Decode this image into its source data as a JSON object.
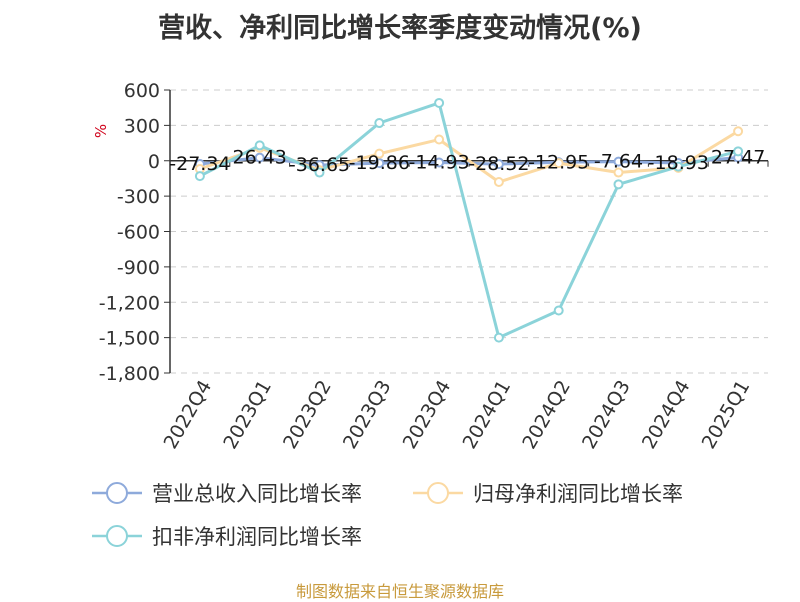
{
  "chart_data": {
    "type": "line",
    "title": "营收、净利同比增长率季度变动情况(%)",
    "unit_label": "%",
    "categories": [
      "2022Q4",
      "2023Q1",
      "2023Q2",
      "2023Q3",
      "2023Q4",
      "2024Q1",
      "2024Q2",
      "2024Q3",
      "2024Q4",
      "2025Q1"
    ],
    "ylim": [
      -1800,
      600
    ],
    "yticks": [
      600,
      300,
      0,
      -300,
      -600,
      -900,
      -1200,
      -1500,
      -1800
    ],
    "ytick_labels": [
      "600",
      "300",
      "0",
      "-300",
      "-600",
      "-900",
      "-1,200",
      "-1,500",
      "-1,800"
    ],
    "grid": true,
    "legend_position": "bottom",
    "series": [
      {
        "name": "营业总收入同比增长率",
        "color": "#8eaadb",
        "values": [
          -27.34,
          26.43,
          -36.65,
          -19.86,
          -14.93,
          -28.52,
          -12.95,
          -7.64,
          -18.93,
          27.47
        ],
        "labels": [
          "-27.34",
          "26.43",
          "-36.65",
          "-19.86",
          "-14.93",
          "-28.52",
          "-12.95",
          "-7.64",
          "-18.93",
          "27.47"
        ]
      },
      {
        "name": "归母净利润同比增长率",
        "color": "#fbd9a2",
        "values": [
          -70,
          110,
          -80,
          60,
          180,
          -180,
          -20,
          -100,
          -60,
          250
        ]
      },
      {
        "name": "扣非净利润同比增长率",
        "color": "#8bd3d9",
        "values": [
          -130,
          130,
          -100,
          320,
          490,
          -1500,
          -1270,
          -200,
          -50,
          80
        ]
      }
    ]
  },
  "source": "制图数据来自恒生聚源数据库"
}
